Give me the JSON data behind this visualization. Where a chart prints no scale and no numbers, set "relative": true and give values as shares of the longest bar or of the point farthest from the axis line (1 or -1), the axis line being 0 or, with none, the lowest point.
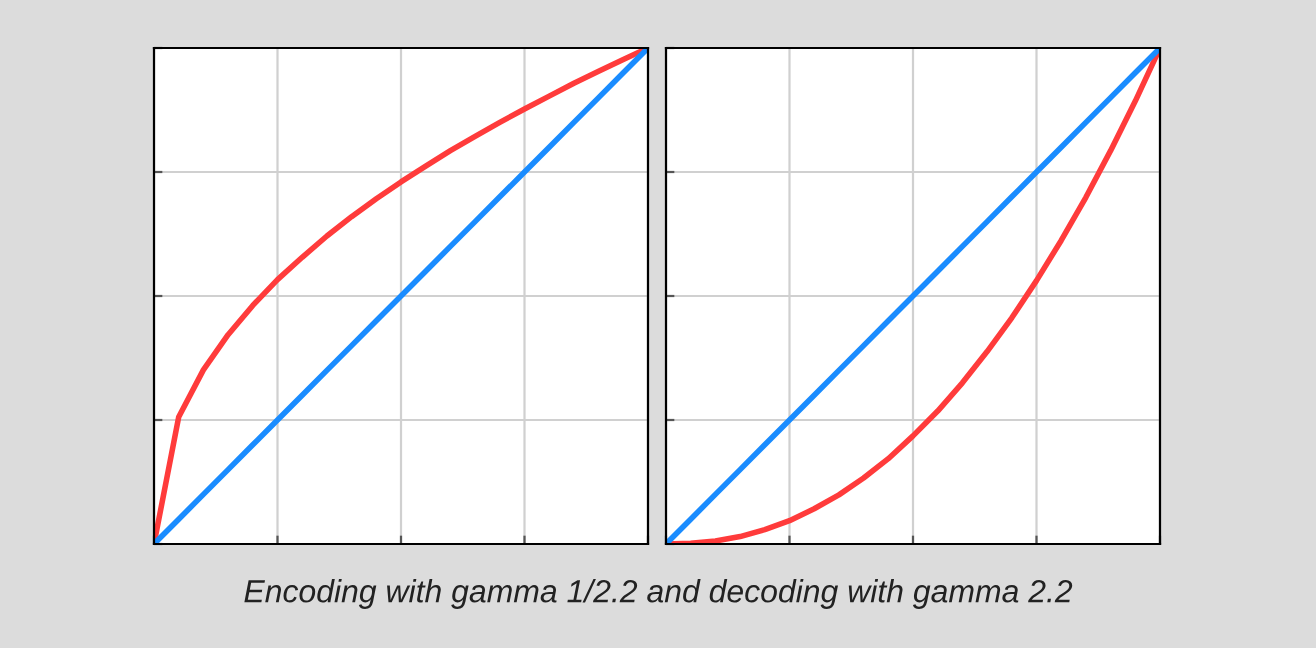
{
  "chart_data": [
    {
      "type": "line",
      "relative": true,
      "tick_labels": false,
      "grid": true,
      "legend": false,
      "marker": "none",
      "line_style": "solid",
      "categories": [
        null,
        null,
        null,
        null,
        null,
        null,
        null,
        null,
        null,
        null,
        null,
        null,
        null,
        null,
        null,
        null,
        null,
        null,
        null,
        null,
        null
      ],
      "series": [
        {
          "color": "#ff3b3b",
          "values": [
            0,
            0.256,
            0.351,
            0.422,
            0.481,
            0.533,
            0.578,
            0.621,
            0.66,
            0.696,
            0.73,
            0.762,
            0.793,
            0.822,
            0.85,
            0.877,
            0.903,
            0.929,
            0.953,
            0.977,
            1
          ]
        },
        {
          "color": "#1a8cff",
          "values": [
            0,
            0.05,
            0.1,
            0.15,
            0.2,
            0.25,
            0.3,
            0.35,
            0.4,
            0.45,
            0.5,
            0.55,
            0.6,
            0.65,
            0.7,
            0.75,
            0.8,
            0.85,
            0.9,
            0.95,
            1
          ]
        }
      ],
      "annotations": [
        "Encoding with gamma 1/2.2 and decoding with gamma 2.2"
      ]
    },
    {
      "type": "line",
      "relative": true,
      "tick_labels": false,
      "grid": true,
      "legend": false,
      "marker": "none",
      "line_style": "solid",
      "categories": [
        null,
        null,
        null,
        null,
        null,
        null,
        null,
        null,
        null,
        null,
        null,
        null,
        null,
        null,
        null,
        null,
        null,
        null,
        null,
        null,
        null
      ],
      "series": [
        {
          "color": "#ff3b3b",
          "values": [
            0,
            0.0014,
            0.006,
            0.015,
            0.029,
            0.047,
            0.071,
            0.099,
            0.133,
            0.172,
            0.218,
            0.268,
            0.325,
            0.388,
            0.456,
            0.531,
            0.612,
            0.699,
            0.793,
            0.893,
            1
          ]
        },
        {
          "color": "#1a8cff",
          "values": [
            0,
            0.05,
            0.1,
            0.15,
            0.2,
            0.25,
            0.3,
            0.35,
            0.4,
            0.45,
            0.5,
            0.55,
            0.6,
            0.65,
            0.7,
            0.75,
            0.8,
            0.85,
            0.9,
            0.95,
            1
          ]
        }
      ]
    }
  ]
}
